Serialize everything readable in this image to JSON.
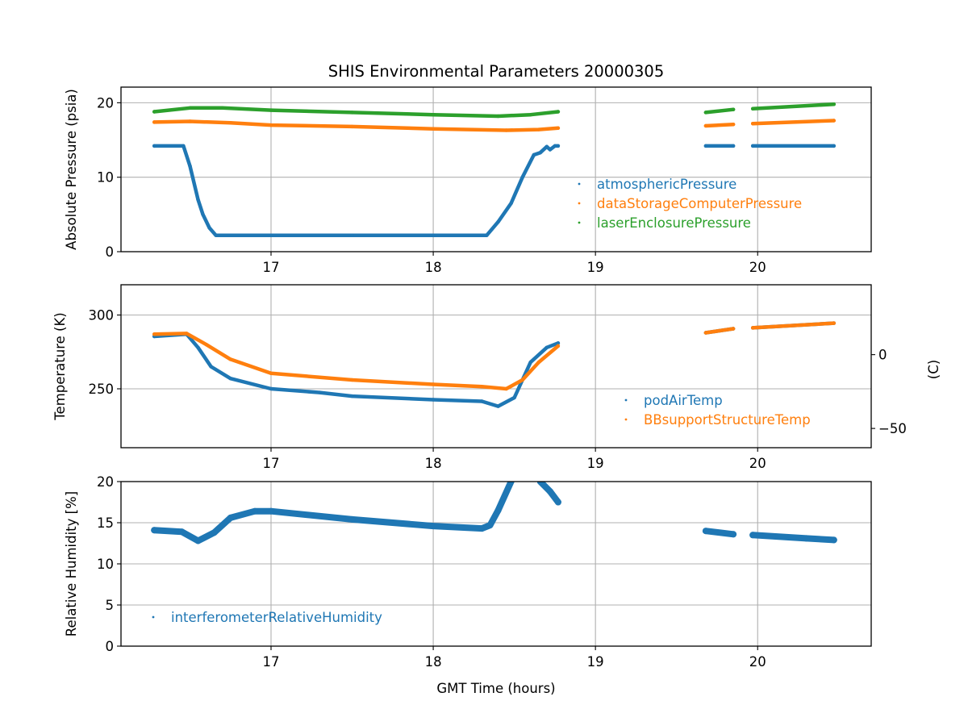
{
  "chart_data": [
    {
      "type": "scatter",
      "title": "SHIS Environmental Parameters 20000305",
      "xlabel": "",
      "ylabel": "Absolute Pressure (psia)",
      "xlim": [
        16.075,
        20.7
      ],
      "ylim": [
        0,
        22.1
      ],
      "x_ticks": [
        17,
        18,
        19,
        20
      ],
      "x_tick_labels": [
        "17",
        "18",
        "19",
        "20"
      ],
      "y_ticks": [
        0,
        10,
        20
      ],
      "y_tick_labels": [
        "0",
        "10",
        "20"
      ],
      "grid": true,
      "legend_position": "lower-right",
      "series": [
        {
          "name": "atmosphericPressure",
          "color": "#1f77b4",
          "segments": [
            [
              [
                16.28,
                14.2
              ],
              [
                16.46,
                14.2
              ],
              [
                16.5,
                11.5
              ],
              [
                16.55,
                7.0
              ],
              [
                16.58,
                5.0
              ],
              [
                16.62,
                3.2
              ],
              [
                16.66,
                2.2
              ],
              [
                17.0,
                2.2
              ],
              [
                17.5,
                2.2
              ],
              [
                18.0,
                2.2
              ],
              [
                18.33,
                2.2
              ],
              [
                18.4,
                4.0
              ],
              [
                18.48,
                6.5
              ],
              [
                18.55,
                10.0
              ],
              [
                18.62,
                13.0
              ],
              [
                18.66,
                13.3
              ],
              [
                18.7,
                14.1
              ],
              [
                18.72,
                13.7
              ],
              [
                18.75,
                14.2
              ],
              [
                18.77,
                14.2
              ]
            ],
            [
              [
                19.68,
                14.2
              ],
              [
                19.85,
                14.2
              ]
            ],
            [
              [
                19.97,
                14.2
              ],
              [
                20.47,
                14.2
              ]
            ]
          ]
        },
        {
          "name": "dataStorageComputerPressure",
          "color": "#ff7f0e",
          "segments": [
            [
              [
                16.28,
                17.4
              ],
              [
                16.5,
                17.5
              ],
              [
                16.75,
                17.3
              ],
              [
                17.0,
                17.0
              ],
              [
                17.5,
                16.8
              ],
              [
                18.0,
                16.5
              ],
              [
                18.45,
                16.3
              ],
              [
                18.65,
                16.4
              ],
              [
                18.77,
                16.6
              ]
            ],
            [
              [
                19.68,
                16.9
              ],
              [
                19.85,
                17.1
              ]
            ],
            [
              [
                19.97,
                17.2
              ],
              [
                20.47,
                17.6
              ]
            ]
          ]
        },
        {
          "name": "laserEnclosurePressure",
          "color": "#2ca02c",
          "segments": [
            [
              [
                16.28,
                18.8
              ],
              [
                16.5,
                19.3
              ],
              [
                16.7,
                19.3
              ],
              [
                17.0,
                19.0
              ],
              [
                17.5,
                18.7
              ],
              [
                18.0,
                18.4
              ],
              [
                18.4,
                18.2
              ],
              [
                18.6,
                18.4
              ],
              [
                18.77,
                18.8
              ]
            ],
            [
              [
                19.68,
                18.7
              ],
              [
                19.85,
                19.1
              ]
            ],
            [
              [
                19.97,
                19.2
              ],
              [
                20.47,
                19.8
              ]
            ]
          ]
        }
      ]
    },
    {
      "type": "scatter",
      "title": "",
      "xlabel": "",
      "ylabel": "Temperature (K)",
      "ylabel_right": "(C)",
      "xlim": [
        16.075,
        20.7
      ],
      "ylim": [
        210.1,
        320.5
      ],
      "x_ticks": [
        17,
        18,
        19,
        20
      ],
      "x_tick_labels": [
        "17",
        "18",
        "19",
        "20"
      ],
      "y_ticks": [
        250,
        300
      ],
      "y_tick_labels": [
        "250",
        "300"
      ],
      "y_right_ticks": [
        0,
        -50
      ],
      "y_right_tick_labels": [
        "0",
        "−50"
      ],
      "grid": true,
      "legend_position": "lower-right",
      "series": [
        {
          "name": "podAirTemp",
          "color": "#1f77b4",
          "segments": [
            [
              [
                16.28,
                285.5
              ],
              [
                16.48,
                287.0
              ],
              [
                16.55,
                278.0
              ],
              [
                16.63,
                265.0
              ],
              [
                16.75,
                257.0
              ],
              [
                17.0,
                250.0
              ],
              [
                17.3,
                247.5
              ],
              [
                17.5,
                245.0
              ],
              [
                18.0,
                242.6
              ],
              [
                18.3,
                241.5
              ],
              [
                18.4,
                238.2
              ],
              [
                18.5,
                244.0
              ],
              [
                18.6,
                268.0
              ],
              [
                18.7,
                278.0
              ],
              [
                18.77,
                281.0
              ]
            ],
            [
              [
                19.68,
                288.0
              ],
              [
                19.85,
                290.7
              ]
            ],
            [
              [
                19.97,
                291.3
              ],
              [
                20.47,
                294.5
              ]
            ]
          ]
        },
        {
          "name": "BBsupportStructureTemp",
          "color": "#ff7f0e",
          "segments": [
            [
              [
                16.28,
                287.0
              ],
              [
                16.48,
                287.5
              ],
              [
                16.6,
                280.0
              ],
              [
                16.75,
                270.0
              ],
              [
                17.0,
                260.5
              ],
              [
                17.5,
                256.0
              ],
              [
                18.0,
                253.0
              ],
              [
                18.3,
                251.5
              ],
              [
                18.45,
                250.0
              ],
              [
                18.55,
                256.0
              ],
              [
                18.65,
                268.0
              ],
              [
                18.77,
                279.0
              ]
            ],
            [
              [
                19.68,
                288.0
              ],
              [
                19.85,
                290.7
              ]
            ],
            [
              [
                19.97,
                291.3
              ],
              [
                20.47,
                294.5
              ]
            ]
          ]
        }
      ]
    },
    {
      "type": "scatter",
      "title": "",
      "xlabel": "GMT Time (hours)",
      "ylabel": "Relative Humidity [%]",
      "xlim": [
        16.075,
        20.7
      ],
      "ylim": [
        0,
        20
      ],
      "x_ticks": [
        17,
        18,
        19,
        20
      ],
      "x_tick_labels": [
        "17",
        "18",
        "19",
        "20"
      ],
      "y_ticks": [
        0,
        5,
        10,
        15,
        20
      ],
      "y_tick_labels": [
        "0",
        "5",
        "10",
        "15",
        "20"
      ],
      "grid": true,
      "legend_position": "lower-left",
      "series": [
        {
          "name": "interferometerRelativeHumidity",
          "color": "#1f77b4",
          "segments": [
            [
              [
                16.28,
                14.1
              ],
              [
                16.45,
                13.9
              ],
              [
                16.55,
                12.8
              ],
              [
                16.65,
                13.8
              ],
              [
                16.75,
                15.6
              ],
              [
                16.9,
                16.4
              ],
              [
                17.0,
                16.4
              ],
              [
                17.5,
                15.4
              ],
              [
                18.0,
                14.6
              ],
              [
                18.3,
                14.3
              ],
              [
                18.35,
                14.7
              ],
              [
                18.4,
                16.5
              ],
              [
                18.48,
                20.0
              ]
            ],
            [
              [
                18.66,
                20.0
              ],
              [
                18.72,
                18.8
              ],
              [
                18.77,
                17.5
              ]
            ],
            [
              [
                19.68,
                14.0
              ],
              [
                19.85,
                13.6
              ]
            ],
            [
              [
                19.97,
                13.5
              ],
              [
                20.3,
                13.1
              ],
              [
                20.47,
                12.9
              ]
            ]
          ]
        }
      ]
    }
  ]
}
